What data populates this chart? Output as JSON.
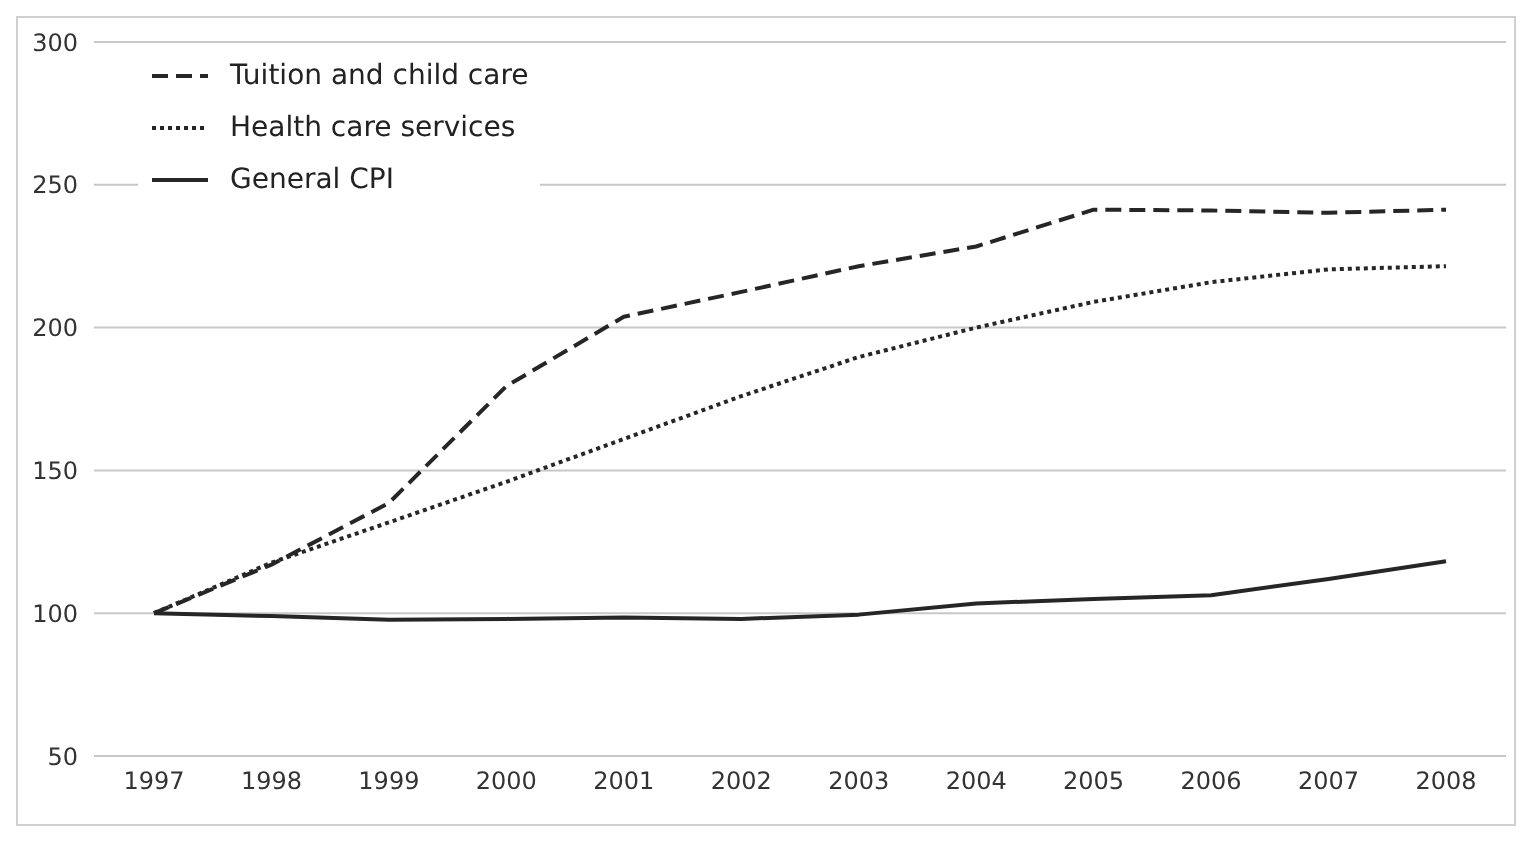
{
  "chart_data": {
    "type": "line",
    "categories": [
      "1997",
      "1998",
      "1999",
      "2000",
      "2001",
      "2002",
      "2003",
      "2004",
      "2005",
      "2006",
      "2007",
      "2008"
    ],
    "series": [
      {
        "name": "Tuition and child care",
        "color": "#262626",
        "line_style": "dashed",
        "values": [
          100,
          117,
          138.6,
          179.5,
          203.8,
          212.5,
          221.5,
          228.4,
          241.3,
          241,
          240.2,
          241.3
        ]
      },
      {
        "name": "Health care services",
        "color": "#262626",
        "line_style": "dotted",
        "values": [
          100,
          117.7,
          131.8,
          146,
          161,
          176,
          189.7,
          200,
          209,
          215.9,
          220.4,
          221.5
        ]
      },
      {
        "name": "General CPI",
        "color": "#262626",
        "line_style": "solid",
        "values": [
          100,
          99,
          97.7,
          98,
          98.5,
          98,
          99.5,
          103.4,
          105,
          106.3,
          112,
          118.2
        ]
      }
    ],
    "ylim": [
      50,
      300
    ],
    "yticks": [
      50,
      100,
      150,
      200,
      250,
      300
    ],
    "grid": "y",
    "legend": "top left",
    "marker": "none"
  }
}
